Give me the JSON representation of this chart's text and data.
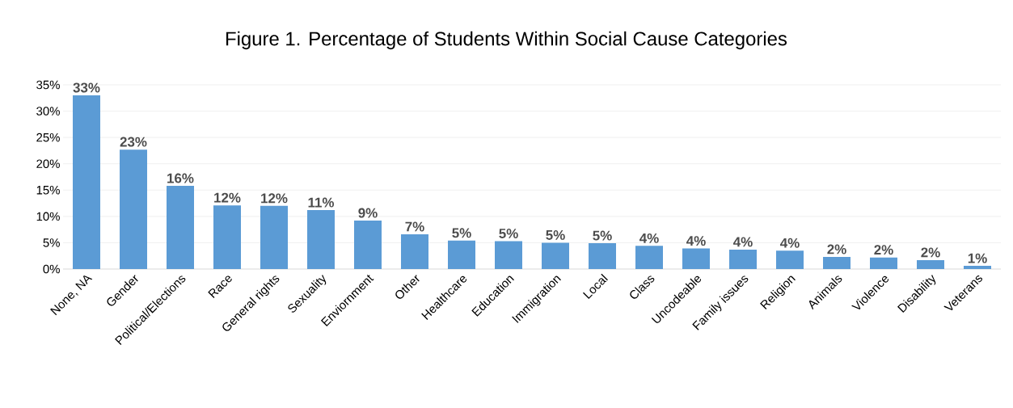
{
  "chart_data": {
    "type": "bar",
    "title": "Figure 1. Percentage of Students Within Social Cause Categories",
    "categories": [
      "None, NA",
      "Gender",
      "Political/Elections",
      "Race",
      "General rights",
      "Sexuality",
      "Enviornment",
      "Other",
      "Healthcare",
      "Education",
      "Immigration",
      "Local",
      "Class",
      "Uncodeable",
      "Family issues",
      "Religion",
      "Animals",
      "Violence",
      "Disability",
      "Veterans"
    ],
    "values": [
      33.0,
      22.7,
      15.8,
      12.1,
      12.0,
      11.2,
      9.2,
      6.6,
      5.4,
      5.3,
      5.0,
      4.9,
      4.4,
      3.9,
      3.7,
      3.5,
      2.3,
      2.2,
      1.7,
      0.6
    ],
    "value_labels": [
      "33%",
      "23%",
      "16%",
      "12%",
      "12%",
      "11%",
      "9%",
      "7%",
      "5%",
      "5%",
      "5%",
      "5%",
      "4%",
      "4%",
      "4%",
      "4%",
      "2%",
      "2%",
      "2%",
      "1%"
    ],
    "color": "#5b9bd5",
    "ylim": [
      0,
      35
    ],
    "yticks": [
      {
        "value": 0,
        "label": "0%"
      },
      {
        "value": 5,
        "label": "5%"
      },
      {
        "value": 10,
        "label": "10%"
      },
      {
        "value": 15,
        "label": "15%"
      },
      {
        "value": 20,
        "label": "20%"
      },
      {
        "value": 25,
        "label": "25%"
      },
      {
        "value": 30,
        "label": "30%"
      },
      {
        "value": 35,
        "label": "35%"
      }
    ],
    "grid": "y"
  }
}
